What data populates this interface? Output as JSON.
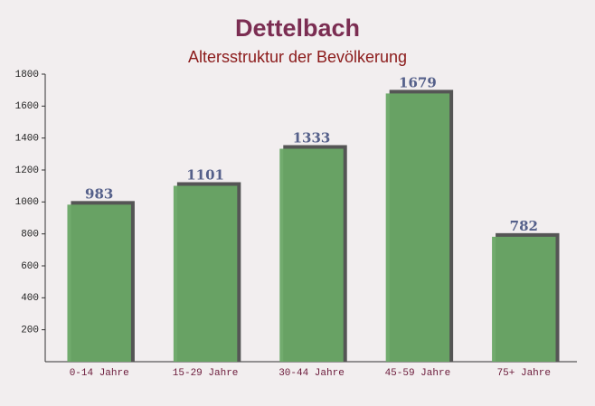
{
  "chart_data": {
    "type": "bar",
    "title": "Dettelbach",
    "subtitle": "Altersstruktur der Bevölkerung",
    "categories": [
      "0-14 Jahre",
      "15-29 Jahre",
      "30-44 Jahre",
      "45-59 Jahre",
      "75+ Jahre"
    ],
    "values": [
      983,
      1101,
      1333,
      1679,
      782
    ],
    "color": "#69a765",
    "ylim": [
      0,
      1800
    ],
    "yticks": [
      200,
      400,
      600,
      800,
      1000,
      1200,
      1400,
      1600,
      1800
    ],
    "grid": false
  }
}
